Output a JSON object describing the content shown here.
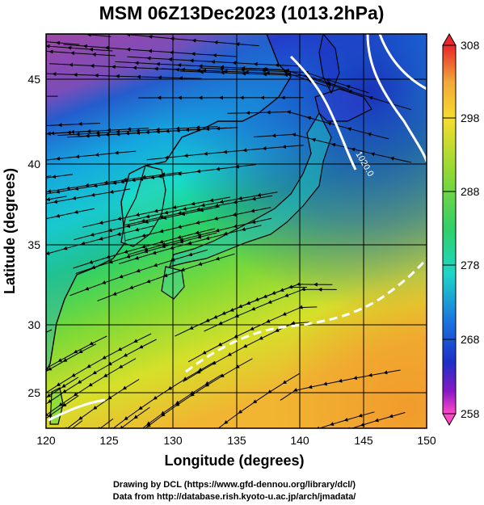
{
  "title": "MSM 06Z13Dec2023 (1013.2hPa)",
  "axes": {
    "xlabel": "Longitude (degrees)",
    "ylabel": "Latitude  (degrees)",
    "x_ticks": [
      "120",
      "125",
      "130",
      "135",
      "140",
      "145",
      "150"
    ],
    "y_ticks": [
      "25",
      "30",
      "35",
      "40",
      "45"
    ]
  },
  "colorbar": {
    "labels": [
      "308",
      "298",
      "288",
      "278",
      "268",
      "258"
    ]
  },
  "contour_label": "1020.0",
  "footer": {
    "line1": "Drawing by DCL (https://www.gfd-dennou.org/library/dcl/)",
    "line2": "Data from http://database.rish.kyoto-u.ac.jp/arch/jmadata/"
  },
  "colors": {
    "warm": "#f2a83a",
    "mid": "#39d84a",
    "cool": "#15c3e6",
    "cold": "#2233cc",
    "magenta": "#e0178f"
  }
}
